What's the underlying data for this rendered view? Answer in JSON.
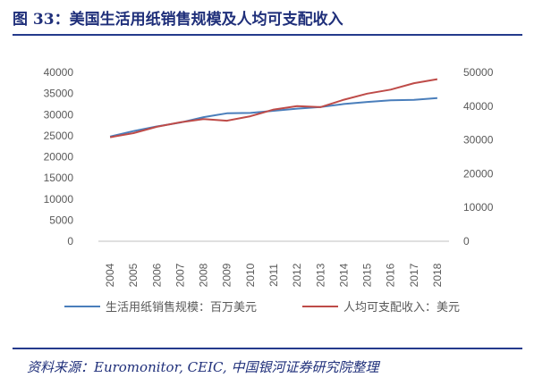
{
  "figure": {
    "title": "图 33：美国生活用纸销售规模及人均可支配收入",
    "source": "资料来源：Euromonitor, CEIC, 中国银河证券研究院整理"
  },
  "colors": {
    "series1": "#4a7ebb",
    "series2": "#be4b48",
    "rule": "#243a8c",
    "text": "#595959",
    "axis": "#bfbfbf"
  },
  "chart_data": {
    "type": "line",
    "categories": [
      "2004",
      "2005",
      "2006",
      "2007",
      "2008",
      "2009",
      "2010",
      "2011",
      "2012",
      "2013",
      "2014",
      "2015",
      "2016",
      "2017",
      "2018"
    ],
    "y_left": {
      "ticks": [
        0,
        5000,
        10000,
        15000,
        20000,
        25000,
        30000,
        35000,
        40000
      ],
      "ylim": [
        0,
        40000
      ]
    },
    "y_right": {
      "ticks": [
        0,
        10000,
        20000,
        30000,
        40000,
        50000
      ],
      "ylim": [
        0,
        50000
      ]
    },
    "grid": false,
    "legend_position": "bottom",
    "series": [
      {
        "name": "生活用纸销售规模：百万美元",
        "axis": "left",
        "values": [
          24800,
          26100,
          27200,
          28100,
          29400,
          30300,
          30400,
          30900,
          31400,
          31800,
          32500,
          33000,
          33400,
          33500,
          33900
        ]
      },
      {
        "name": "人均可支配收入：美元",
        "axis": "right",
        "values": [
          30800,
          32000,
          33900,
          35200,
          36200,
          35700,
          37000,
          39000,
          40000,
          39700,
          41900,
          43700,
          44900,
          46800,
          48000
        ]
      }
    ]
  }
}
